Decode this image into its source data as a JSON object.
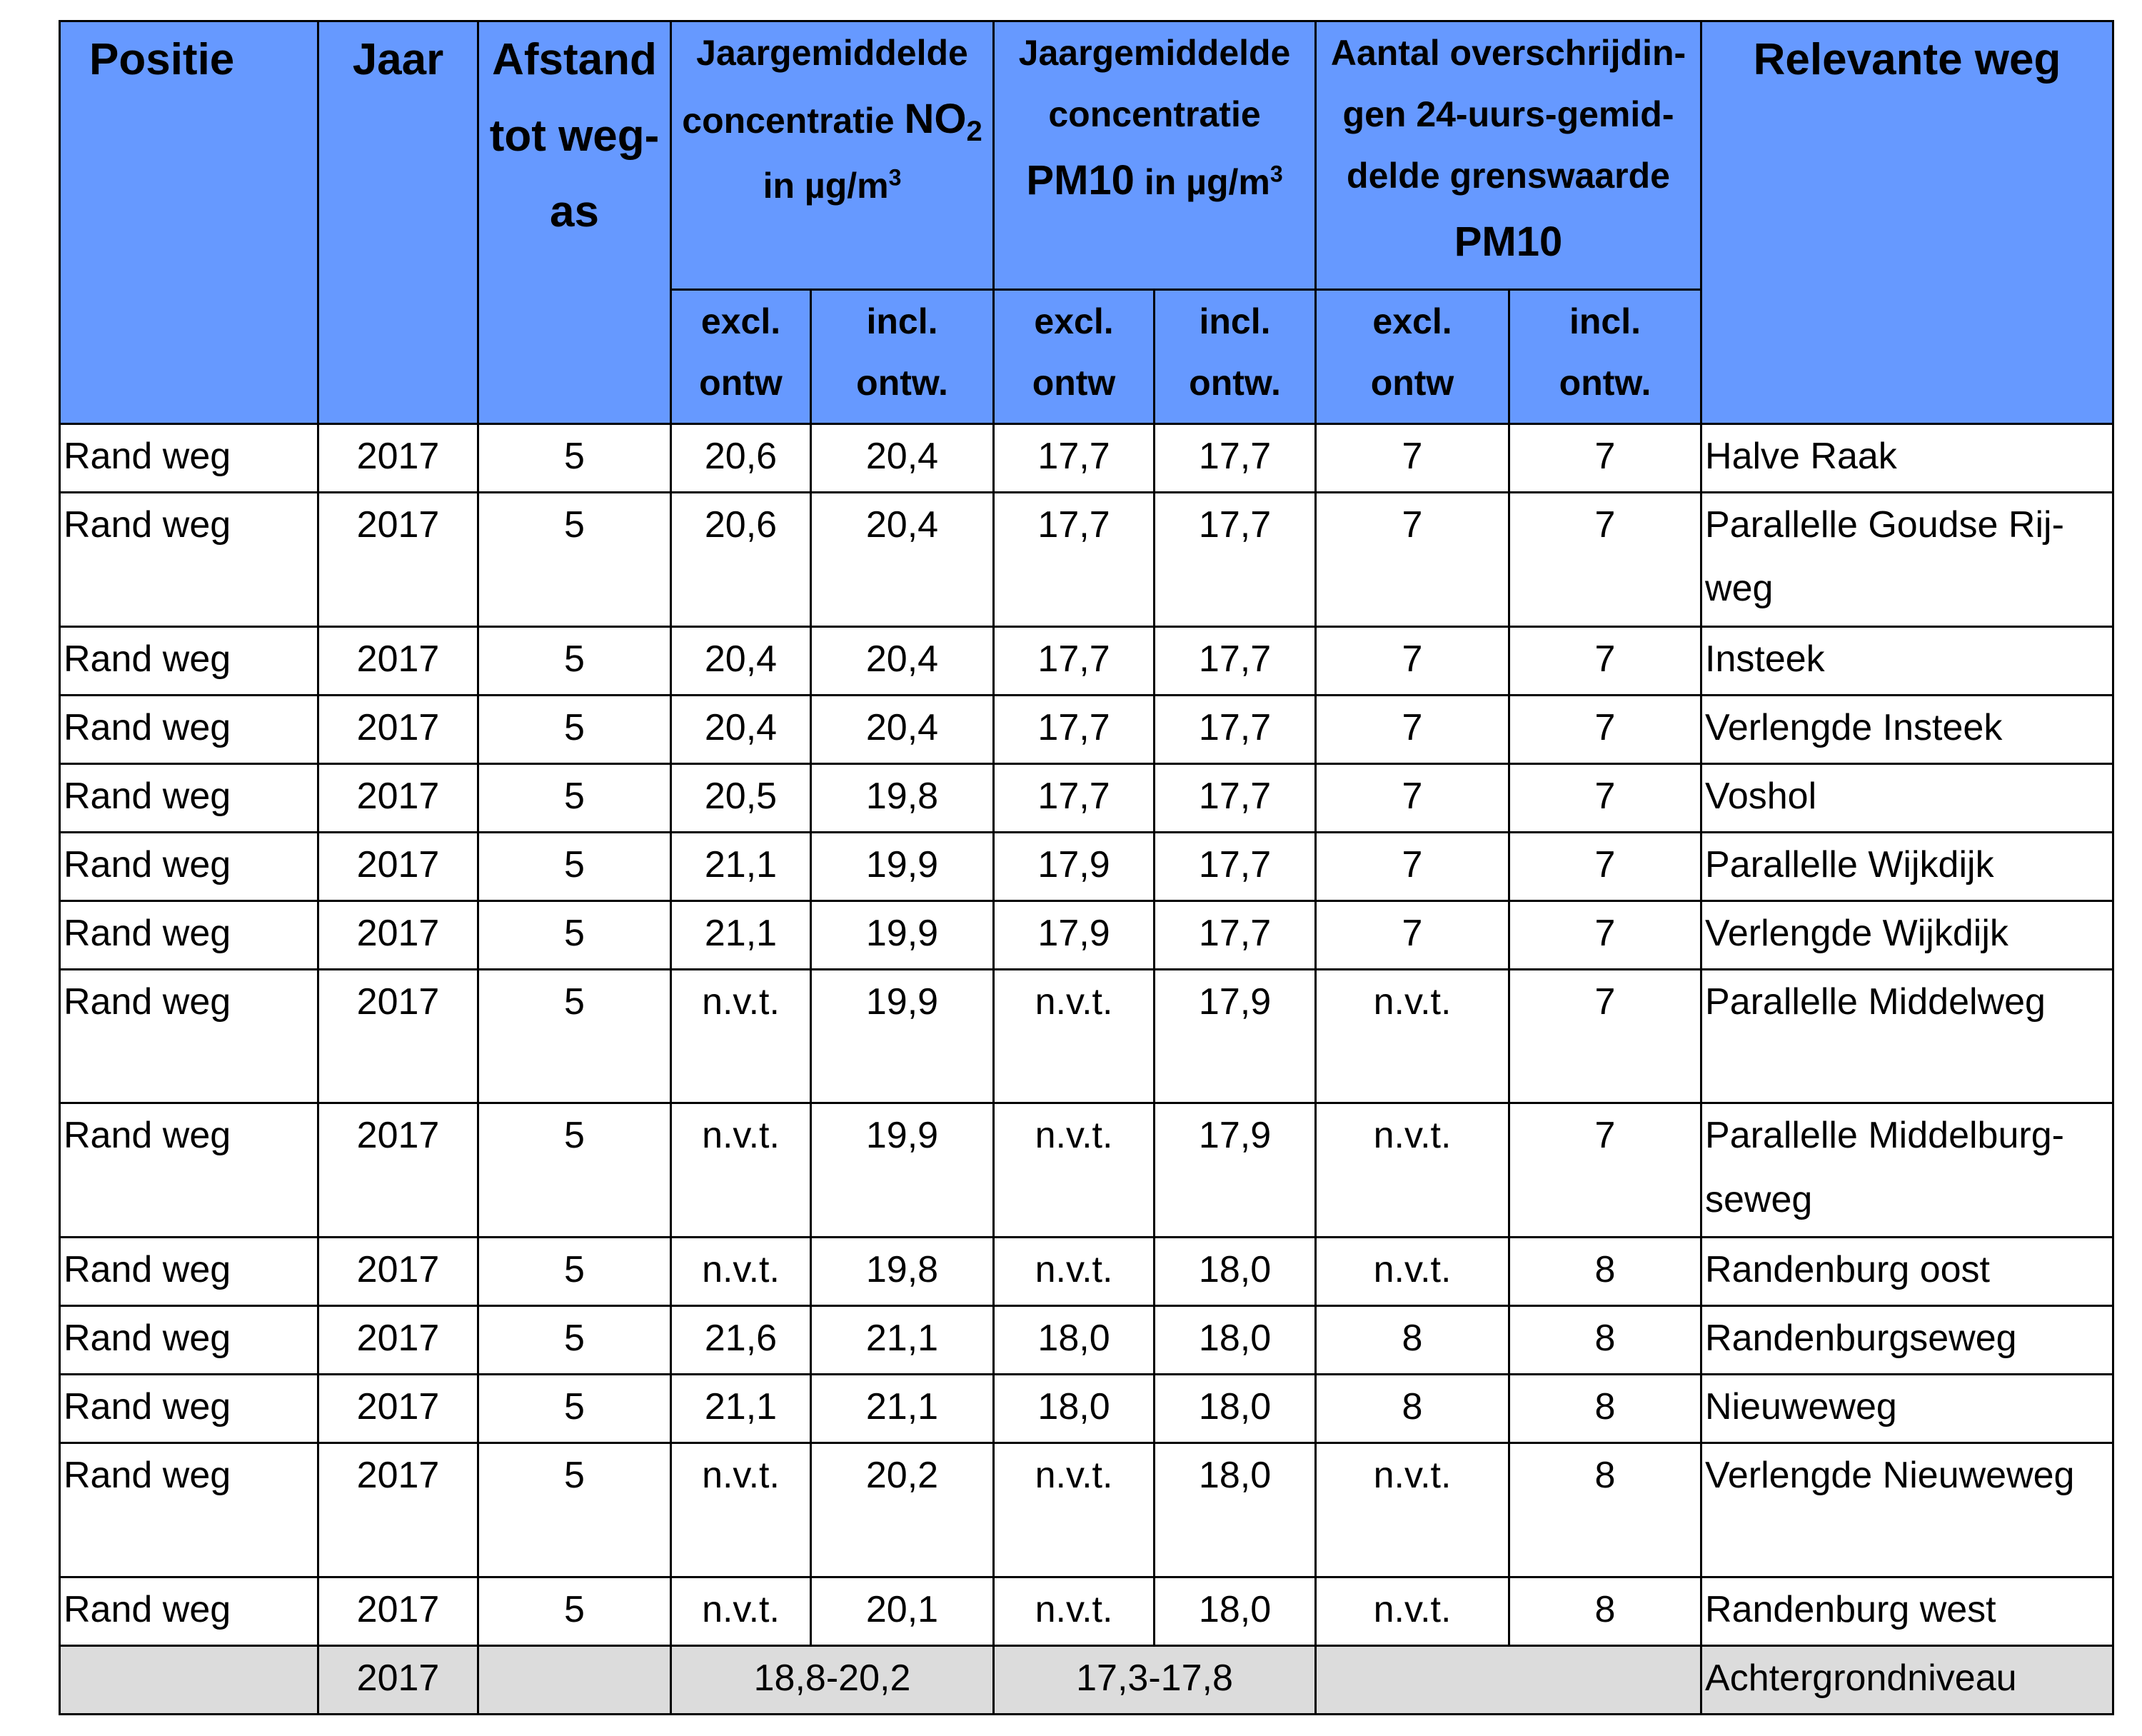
{
  "headers": {
    "positie": "Positie",
    "jaar": "Jaar",
    "afstand": [
      "Afstand",
      "tot weg-",
      "as"
    ],
    "no2": {
      "line1": "Jaargemiddelde",
      "line2": "concentratie",
      "chem": "NO",
      "sub": "2",
      "line3": "in µg/m",
      "sup": "3"
    },
    "pm10": {
      "line1": "Jaargemiddelde",
      "line2": "concentratie",
      "chem": "PM10",
      "line3": "in µg/m",
      "sup": "3"
    },
    "overschrijdingen": [
      "Aantal overschrijdin-",
      "gen 24-uurs-gemid-",
      "delde grenswaarde",
      "PM10"
    ],
    "weg": "Relevante weg",
    "excl": [
      "excl.",
      "ontw"
    ],
    "incl": [
      "incl.",
      "ontw."
    ]
  },
  "rows": [
    {
      "positie": "Rand weg",
      "jaar": "2017",
      "afstand": "5",
      "no2_excl": "20,6",
      "no2_incl": "20,4",
      "pm10_excl": "17,7",
      "pm10_incl": "17,7",
      "ov_excl": "7",
      "ov_incl": "7",
      "weg": [
        "Halve Raak"
      ]
    },
    {
      "positie": "Rand weg",
      "jaar": "2017",
      "afstand": "5",
      "no2_excl": "20,6",
      "no2_incl": "20,4",
      "pm10_excl": "17,7",
      "pm10_incl": "17,7",
      "ov_excl": "7",
      "ov_incl": "7",
      "weg": [
        "Parallelle Goudse Rij-",
        "weg"
      ]
    },
    {
      "positie": "Rand weg",
      "jaar": "2017",
      "afstand": "5",
      "no2_excl": "20,4",
      "no2_incl": "20,4",
      "pm10_excl": "17,7",
      "pm10_incl": "17,7",
      "ov_excl": "7",
      "ov_incl": "7",
      "weg": [
        "Insteek"
      ]
    },
    {
      "positie": "Rand weg",
      "jaar": "2017",
      "afstand": "5",
      "no2_excl": "20,4",
      "no2_incl": "20,4",
      "pm10_excl": "17,7",
      "pm10_incl": "17,7",
      "ov_excl": "7",
      "ov_incl": "7",
      "weg": [
        "Verlengde Insteek"
      ]
    },
    {
      "positie": "Rand weg",
      "jaar": "2017",
      "afstand": "5",
      "no2_excl": "20,5",
      "no2_incl": "19,8",
      "pm10_excl": "17,7",
      "pm10_incl": "17,7",
      "ov_excl": "7",
      "ov_incl": "7",
      "weg": [
        "Voshol"
      ]
    },
    {
      "positie": "Rand weg",
      "jaar": "2017",
      "afstand": "5",
      "no2_excl": "21,1",
      "no2_incl": "19,9",
      "pm10_excl": "17,9",
      "pm10_incl": "17,7",
      "ov_excl": "7",
      "ov_incl": "7",
      "weg": [
        "Parallelle Wijkdijk"
      ]
    },
    {
      "positie": "Rand weg",
      "jaar": "2017",
      "afstand": "5",
      "no2_excl": "21,1",
      "no2_incl": "19,9",
      "pm10_excl": "17,9",
      "pm10_incl": "17,7",
      "ov_excl": "7",
      "ov_incl": "7",
      "weg": [
        "Verlengde Wijkdijk"
      ]
    },
    {
      "positie": "Rand weg",
      "jaar": "2017",
      "afstand": "5",
      "no2_excl": "n.v.t.",
      "no2_incl": "19,9",
      "pm10_excl": "n.v.t.",
      "pm10_incl": "17,9",
      "ov_excl": "n.v.t.",
      "ov_incl": "7",
      "weg": [
        "Parallelle Middelweg"
      ]
    },
    {
      "positie": "Rand weg",
      "jaar": "2017",
      "afstand": "5",
      "no2_excl": "n.v.t.",
      "no2_incl": "19,9",
      "pm10_excl": "n.v.t.",
      "pm10_incl": "17,9",
      "ov_excl": "n.v.t.",
      "ov_incl": "7",
      "weg": [
        "Parallelle Middelburg-",
        "seweg"
      ]
    },
    {
      "positie": "Rand weg",
      "jaar": "2017",
      "afstand": "5",
      "no2_excl": "n.v.t.",
      "no2_incl": "19,8",
      "pm10_excl": "n.v.t.",
      "pm10_incl": "18,0",
      "ov_excl": "n.v.t.",
      "ov_incl": "8",
      "weg": [
        "Randenburg oost"
      ]
    },
    {
      "positie": "Rand weg",
      "jaar": "2017",
      "afstand": "5",
      "no2_excl": "21,6",
      "no2_incl": "21,1",
      "pm10_excl": "18,0",
      "pm10_incl": "18,0",
      "ov_excl": "8",
      "ov_incl": "8",
      "weg": [
        "Randenburgseweg"
      ]
    },
    {
      "positie": "Rand weg",
      "jaar": "2017",
      "afstand": "5",
      "no2_excl": "21,1",
      "no2_incl": "21,1",
      "pm10_excl": "18,0",
      "pm10_incl": "18,0",
      "ov_excl": "8",
      "ov_incl": "8",
      "weg": [
        "Nieuweweg"
      ]
    },
    {
      "positie": "Rand weg",
      "jaar": "2017",
      "afstand": "5",
      "no2_excl": "n.v.t.",
      "no2_incl": "20,2",
      "pm10_excl": "n.v.t.",
      "pm10_incl": "18,0",
      "ov_excl": "n.v.t.",
      "ov_incl": "8",
      "weg": [
        "Verlengde Nieuweweg"
      ]
    },
    {
      "positie": "Rand weg",
      "jaar": "2017",
      "afstand": "5",
      "no2_excl": "n.v.t.",
      "no2_incl": "20,1",
      "pm10_excl": "n.v.t.",
      "pm10_incl": "18,0",
      "ov_excl": "n.v.t.",
      "ov_incl": "8",
      "weg": [
        "Randenburg west"
      ]
    }
  ],
  "footer": {
    "jaar": "2017",
    "no2_range": "18,8-20,2",
    "pm10_range": "17,3-17,8",
    "weg": "Achtergrondniveau"
  },
  "colors": {
    "header_bg": "#6699ff",
    "footer_bg": "#dcdcdc"
  }
}
